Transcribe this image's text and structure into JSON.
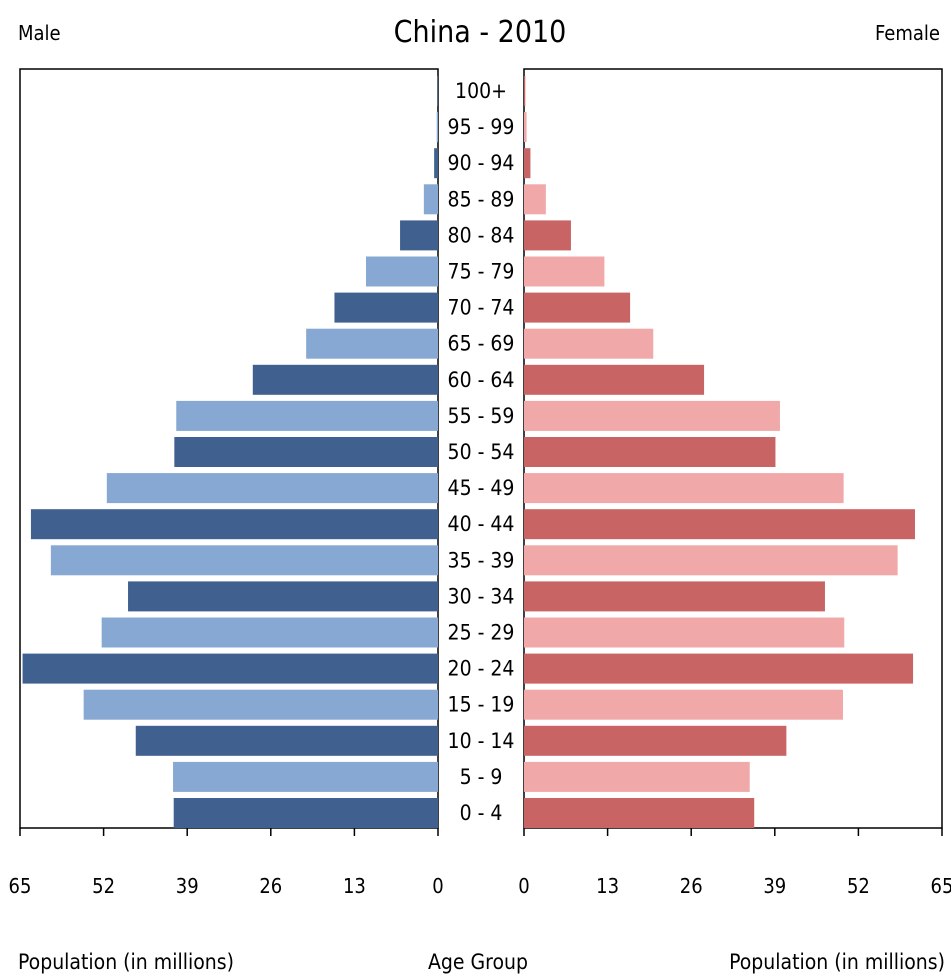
{
  "chart_data": {
    "type": "bar",
    "subtype": "population-pyramid",
    "title": "China - 2010",
    "left_label": "Male",
    "right_label": "Female",
    "xlabel_left": "Population (in millions)",
    "xlabel_center": "Age Group",
    "xlabel_right": "Population (in millions)",
    "xlim": [
      0,
      65
    ],
    "x_ticks": [
      "0",
      "13",
      "26",
      "39",
      "52",
      "65"
    ],
    "categories": [
      "100+",
      "95 - 99",
      "90 - 94",
      "85 - 89",
      "80 - 84",
      "75 - 79",
      "70 - 74",
      "65 - 69",
      "60 - 64",
      "55 - 59",
      "50 - 54",
      "45 - 49",
      "40 - 44",
      "35 - 39",
      "30 - 34",
      "25 - 29",
      "20 - 24",
      "15 - 19",
      "10 - 14",
      "5 - 9",
      "0 - 4"
    ],
    "series": [
      {
        "name": "Male",
        "side": "left",
        "values": [
          0.1,
          0.2,
          0.6,
          2.2,
          5.9,
          11.2,
          16.1,
          20.5,
          28.8,
          40.7,
          41.0,
          51.5,
          63.3,
          60.2,
          48.2,
          52.3,
          64.6,
          55.1,
          47.0,
          41.2,
          41.1
        ],
        "colors": [
          "#40618f",
          "#86a8d2"
        ]
      },
      {
        "name": "Female",
        "side": "right",
        "values": [
          0.2,
          0.4,
          1.0,
          3.4,
          7.3,
          12.5,
          16.5,
          20.1,
          28.0,
          39.8,
          39.1,
          49.7,
          60.8,
          58.1,
          46.8,
          49.8,
          60.5,
          49.6,
          40.8,
          35.1,
          35.8
        ],
        "colors": [
          "#c86464",
          "#f0a8a8"
        ]
      }
    ]
  }
}
